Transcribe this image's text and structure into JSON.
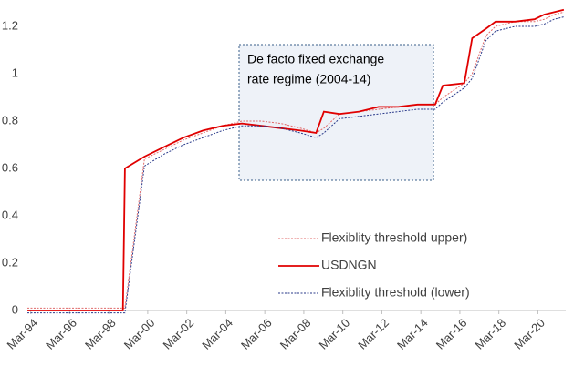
{
  "chart_data": {
    "type": "line",
    "annotation": [
      "De facto fixed exchange",
      "rate regime (2004-14)"
    ],
    "x": [
      1994,
      1998.9,
      1999,
      2000,
      2001,
      2002,
      2003,
      2004,
      2005,
      2006,
      2007,
      2008,
      2008.8,
      2009.2,
      2010,
      2011,
      2012,
      2013,
      2014,
      2014.9,
      2015.3,
      2016.4,
      2016.8,
      2017.5,
      2018,
      2019,
      2020,
      2020.5,
      2021,
      2021.5
    ],
    "series": [
      {
        "name": "Flexiblity threshold upper)",
        "color": "#e06a6a",
        "dash": true,
        "values": [
          0.01,
          0.01,
          0.01,
          0.64,
          0.68,
          0.72,
          0.75,
          0.78,
          0.8,
          0.8,
          0.79,
          0.77,
          0.75,
          0.77,
          0.83,
          0.84,
          0.85,
          0.86,
          0.87,
          0.87,
          0.9,
          0.96,
          1.0,
          1.16,
          1.2,
          1.22,
          1.22,
          1.23,
          1.25,
          1.26
        ]
      },
      {
        "name": "USDNGN",
        "color": "#e00000",
        "dash": false,
        "values": [
          0,
          0,
          0.6,
          0.65,
          0.69,
          0.73,
          0.76,
          0.78,
          0.79,
          0.78,
          0.77,
          0.76,
          0.75,
          0.84,
          0.83,
          0.84,
          0.86,
          0.86,
          0.87,
          0.87,
          0.95,
          0.96,
          1.15,
          1.19,
          1.22,
          1.22,
          1.23,
          1.25,
          1.26,
          1.27
        ]
      },
      {
        "name": "Flexiblity threshold (lower)",
        "color": "#2a3a8a",
        "dash": true,
        "values": [
          -0.01,
          -0.01,
          -0.01,
          0.61,
          0.66,
          0.7,
          0.73,
          0.76,
          0.78,
          0.78,
          0.77,
          0.75,
          0.73,
          0.75,
          0.81,
          0.82,
          0.83,
          0.84,
          0.85,
          0.85,
          0.88,
          0.94,
          0.98,
          1.14,
          1.18,
          1.2,
          1.2,
          1.21,
          1.23,
          1.24
        ]
      }
    ],
    "xlim": [
      1994,
      2021.6
    ],
    "xticks": [
      {
        "value": 1994.17,
        "label": "Mar-94"
      },
      {
        "value": 1996.17,
        "label": "Mar-96"
      },
      {
        "value": 1998.17,
        "label": "Mar-98"
      },
      {
        "value": 2000.17,
        "label": "Mar-00"
      },
      {
        "value": 2002.17,
        "label": "Mar-02"
      },
      {
        "value": 2004.17,
        "label": "Mar-04"
      },
      {
        "value": 2006.17,
        "label": "Mar-06"
      },
      {
        "value": 2008.17,
        "label": "Mar-08"
      },
      {
        "value": 2010.17,
        "label": "Mar-10"
      },
      {
        "value": 2012.17,
        "label": "Mar-12"
      },
      {
        "value": 2014.17,
        "label": "Mar-14"
      },
      {
        "value": 2016.17,
        "label": "Mar-16"
      },
      {
        "value": 2018.17,
        "label": "Mar-18"
      },
      {
        "value": 2020.17,
        "label": "Mar-20"
      }
    ],
    "ylim": [
      0,
      1.3
    ],
    "yticks": [
      0,
      0.2,
      0.4,
      0.6,
      0.8,
      1,
      1.2
    ],
    "grid": false
  }
}
